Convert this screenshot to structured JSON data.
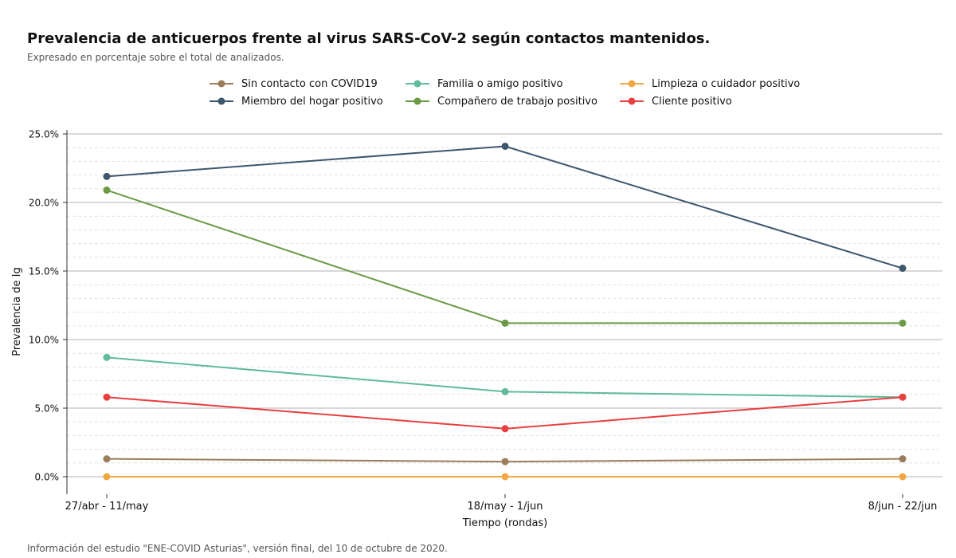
{
  "header": {
    "title": "Prevalencia de anticuerpos frente al virus SARS-CoV-2 según contactos mantenidos.",
    "subtitle": "Expresado en porcentaje sobre el total de analizados."
  },
  "footer": {
    "caption": "Información del estudio \"ENE-COVID Asturias\", versión final, del 10 de octubre de 2020."
  },
  "chart_data": {
    "type": "line",
    "title": "Prevalencia de anticuerpos frente al virus SARS-CoV-2 según contactos mantenidos.",
    "subtitle": "Expresado en porcentaje sobre el total de analizados.",
    "xlabel": "Tiempo (rondas)",
    "ylabel": "Prevalencia de Ig",
    "categories": [
      "27/abr - 11/may",
      "18/may - 1/jun",
      "8/jun - 22/jun"
    ],
    "yticks": [
      "0.0%",
      "5.0%",
      "10.0%",
      "15.0%",
      "20.0%",
      "25.0%"
    ],
    "ylim": [
      -1.2,
      25.3
    ],
    "legend_position": "top",
    "grid": true,
    "series": [
      {
        "name": "Sin contacto con COVID19",
        "color": "#9b7d5c",
        "values": [
          1.3,
          1.1,
          1.3
        ]
      },
      {
        "name": "Miembro del hogar positivo",
        "color": "#3e566e",
        "values": [
          21.9,
          24.1,
          15.2
        ]
      },
      {
        "name": "Familia o amigo positivo",
        "color": "#5fbb9c",
        "values": [
          8.7,
          6.2,
          5.8
        ]
      },
      {
        "name": "Compañero de trabajo positivo",
        "color": "#6b9a45",
        "values": [
          20.9,
          11.2,
          11.2
        ]
      },
      {
        "name": "Limpieza o cuidador positivo",
        "color": "#f0a844",
        "values": [
          0.0,
          0.0,
          0.0
        ]
      },
      {
        "name": "Cliente positivo",
        "color": "#e8403f",
        "values": [
          5.8,
          3.5,
          5.8
        ]
      }
    ]
  }
}
